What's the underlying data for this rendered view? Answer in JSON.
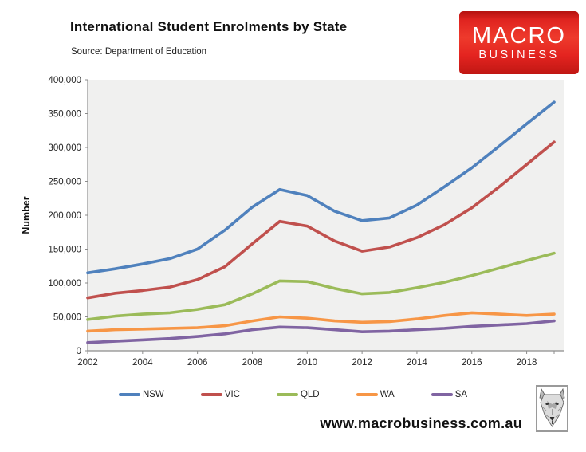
{
  "header": {
    "title": "International Student Enrolments by State",
    "source": "Source: Department of Education"
  },
  "logo": {
    "line1": "MACRO",
    "line2": "BUSINESS",
    "bg_color": "#e02420",
    "text_color": "#ffffff"
  },
  "chart_data": {
    "type": "line",
    "title": "International Student Enrolments by State",
    "xlabel": "",
    "ylabel": "Number",
    "ylim": [
      0,
      400000
    ],
    "ytick_step": 50000,
    "grid": false,
    "legend_position": "bottom",
    "plot_bg": "#f0f0ef",
    "axis_color": "#8c8c8c",
    "x": [
      2002,
      2003,
      2004,
      2005,
      2006,
      2007,
      2008,
      2009,
      2010,
      2011,
      2012,
      2013,
      2014,
      2015,
      2016,
      2017,
      2018,
      2019
    ],
    "xtick_labels": [
      "2002",
      "2004",
      "2006",
      "2008",
      "2010",
      "2012",
      "2014",
      "2016",
      "2018"
    ],
    "series": [
      {
        "name": "NSW",
        "color": "#4F81BD",
        "values": [
          115000,
          121000,
          128000,
          136000,
          150000,
          178000,
          212000,
          238000,
          229000,
          206000,
          192000,
          196000,
          215000,
          242000,
          270000,
          302000,
          335000,
          367000
        ]
      },
      {
        "name": "VIC",
        "color": "#C0504D",
        "values": [
          78000,
          85000,
          89000,
          94000,
          105000,
          124000,
          158000,
          191000,
          184000,
          162000,
          147000,
          153000,
          167000,
          186000,
          211000,
          242000,
          275000,
          308000
        ]
      },
      {
        "name": "QLD",
        "color": "#9BBB59",
        "values": [
          46000,
          51000,
          54000,
          56000,
          61000,
          68000,
          84000,
          103000,
          102000,
          92000,
          84000,
          86000,
          93000,
          101000,
          111000,
          122000,
          133000,
          144000
        ]
      },
      {
        "name": "WA",
        "color": "#F79646",
        "values": [
          29000,
          31000,
          32000,
          33000,
          34000,
          37000,
          44000,
          50000,
          48000,
          44000,
          42000,
          43000,
          47000,
          52000,
          56000,
          54000,
          52000,
          54000
        ]
      },
      {
        "name": "SA",
        "color": "#8064A2",
        "values": [
          12000,
          14000,
          16000,
          18000,
          21000,
          25000,
          31000,
          35000,
          34000,
          31000,
          28000,
          29000,
          31000,
          33000,
          36000,
          38000,
          40000,
          44000
        ]
      }
    ]
  },
  "footer": {
    "url": "www.macrobusiness.com.au"
  }
}
